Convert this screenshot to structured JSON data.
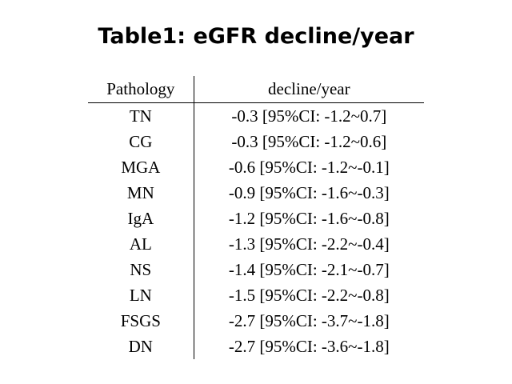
{
  "title": "Table1: eGFR decline/year",
  "table": {
    "headers": [
      "Pathology",
      "decline/year"
    ],
    "rows": [
      [
        "TN",
        "-0.3 [95%CI: -1.2~0.7]"
      ],
      [
        "CG",
        "-0.3 [95%CI: -1.2~0.6]"
      ],
      [
        "MGA",
        "-0.6 [95%CI: -1.2~-0.1]"
      ],
      [
        "MN",
        "-0.9 [95%CI: -1.6~-0.3]"
      ],
      [
        "IgA",
        "-1.2 [95%CI: -1.6~-0.8]"
      ],
      [
        "AL",
        "-1.3 [95%CI: -2.2~-0.4]"
      ],
      [
        "NS",
        "-1.4 [95%CI: -2.1~-0.7]"
      ],
      [
        "LN",
        "-1.5 [95%CI: -2.2~-0.8]"
      ],
      [
        "FSGS",
        "-2.7 [95%CI: -3.7~-1.8]"
      ],
      [
        "DN",
        "-2.7 [95%CI: -3.6~-1.8]"
      ]
    ]
  }
}
